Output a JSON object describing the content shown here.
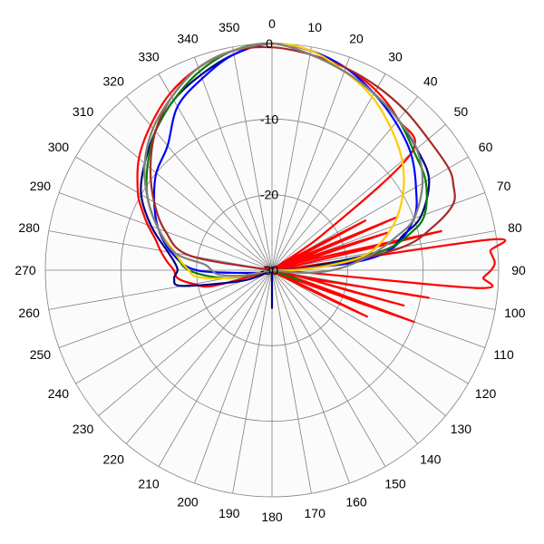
{
  "chart_data": {
    "type": "polar-line",
    "title": "",
    "angle_unit": "degrees",
    "angle_zero": "top",
    "angle_direction": "clockwise",
    "angle_ticks": [
      0,
      10,
      20,
      30,
      40,
      50,
      60,
      70,
      80,
      90,
      100,
      110,
      120,
      130,
      140,
      150,
      160,
      170,
      180,
      190,
      200,
      210,
      220,
      230,
      240,
      250,
      260,
      270,
      280,
      290,
      300,
      310,
      320,
      330,
      340,
      350
    ],
    "radial_range": [
      -30,
      0
    ],
    "radial_ticks": [
      0,
      -10,
      -20,
      -30
    ],
    "radial_tick_labels": [
      "0",
      "-10",
      "-20",
      "-30"
    ],
    "grid": true,
    "legend": "none",
    "colors": {
      "background": "#ffffff",
      "plot_background": "#fbfbfb",
      "grid": "#808080"
    },
    "series": [
      {
        "color": "#ff0000",
        "angles": [
          0,
          10,
          20,
          30,
          40,
          50,
          55,
          60,
          62,
          65,
          67,
          70,
          72,
          75,
          77,
          80,
          82,
          85,
          88,
          90,
          92,
          95,
          97,
          100,
          103,
          105,
          107,
          110,
          113,
          116,
          118,
          120,
          125,
          130,
          140,
          150,
          170,
          180,
          200,
          220,
          240,
          250,
          255,
          260,
          265,
          270,
          275,
          280,
          285,
          290,
          295,
          300,
          310,
          320,
          330,
          340,
          350
        ],
        "values": [
          0,
          -0.5,
          -1.5,
          -2.5,
          -4,
          -6,
          -22,
          -30,
          -16,
          -30,
          -12,
          -30,
          -14,
          -30,
          -7,
          -30,
          -1,
          -1,
          -0.5,
          -1,
          -2,
          -3,
          -30,
          -9,
          -24,
          -12,
          -30,
          -10,
          -30,
          -16,
          -30,
          -30,
          -30,
          -30,
          -30,
          -30,
          -30,
          -30,
          -30,
          -30,
          -30,
          -30,
          -22,
          -19.5,
          -17.5,
          -17,
          -16,
          -15,
          -14,
          -12.5,
          -11,
          -9.5,
          -7,
          -5,
          -3,
          -1.5,
          -0.5
        ]
      },
      {
        "color": "#000080",
        "angles": [
          0,
          10,
          20,
          30,
          40,
          50,
          60,
          70,
          75,
          80,
          85,
          90,
          100,
          110,
          120,
          140,
          160,
          180,
          200,
          220,
          240,
          250,
          260,
          265,
          270,
          275,
          280,
          290,
          300,
          310,
          320,
          330,
          340,
          350
        ],
        "values": [
          0,
          -1,
          -2,
          -3,
          -4,
          -5,
          -6,
          -9,
          -12,
          -15,
          -25,
          -30,
          -30,
          -30,
          -30,
          -30,
          -30,
          -25,
          -30,
          -30,
          -30,
          -26,
          -18,
          -17,
          -17.5,
          -17,
          -16,
          -13,
          -10,
          -8,
          -6,
          -4,
          -2.5,
          -1
        ]
      },
      {
        "color": "#0000ff",
        "angles": [
          0,
          10,
          20,
          30,
          40,
          50,
          60,
          70,
          80,
          85,
          90,
          100,
          120,
          150,
          180,
          210,
          240,
          250,
          260,
          270,
          280,
          290,
          300,
          310,
          320,
          330,
          340,
          350
        ],
        "values": [
          0,
          -0.5,
          -1.5,
          -3,
          -4.5,
          -6,
          -8,
          -10,
          -14,
          -20,
          -30,
          -30,
          -30,
          -30,
          -30,
          -30,
          -30,
          -30,
          -28,
          -20,
          -16.5,
          -14,
          -12,
          -10,
          -8.5,
          -5,
          -3,
          -1
        ]
      },
      {
        "color": "#008000",
        "angles": [
          0,
          10,
          20,
          30,
          40,
          50,
          60,
          70,
          75,
          80,
          85,
          90,
          100,
          110,
          120,
          140,
          160,
          180,
          200,
          220,
          240,
          250,
          260,
          270,
          280,
          290,
          300,
          310,
          320,
          330,
          340,
          350
        ],
        "values": [
          0,
          -1,
          -2,
          -3,
          -4,
          -5.5,
          -6.5,
          -8.5,
          -11,
          -15,
          -23,
          -30,
          -30,
          -26,
          -30,
          -30,
          -30,
          -30,
          -30,
          -30,
          -30,
          -30,
          -24,
          -19,
          -17,
          -14,
          -11,
          -8.5,
          -6,
          -4,
          -2,
          -0.5
        ]
      },
      {
        "color": "#a52a2a",
        "angles": [
          0,
          10,
          20,
          30,
          40,
          50,
          60,
          65,
          70,
          75,
          80,
          85,
          90,
          95,
          100,
          110,
          120,
          140,
          160,
          180,
          200,
          220,
          240,
          260,
          270,
          280,
          290,
          300,
          310,
          320,
          330,
          340,
          350
        ],
        "values": [
          -0.5,
          -1,
          -1.5,
          -2,
          -2.5,
          -3,
          -3,
          -3.5,
          -4.5,
          -8,
          -12.5,
          -22,
          -30,
          -28,
          -30,
          -30,
          -30,
          -30,
          -30,
          -30,
          -30,
          -30,
          -30,
          -30,
          -30,
          -19,
          -15,
          -12,
          -9,
          -6,
          -3.5,
          -1.5,
          -0.5
        ]
      },
      {
        "color": "#ffcc00",
        "angles": [
          0,
          10,
          20,
          30,
          40,
          50,
          60,
          70,
          80,
          85,
          90,
          95,
          100,
          110,
          120,
          150,
          180,
          210,
          240,
          250,
          260,
          265,
          270,
          275,
          280,
          290,
          300,
          310,
          320,
          330,
          340,
          350
        ],
        "values": [
          0,
          -0.5,
          -2,
          -3.5,
          -5.5,
          -7.5,
          -10,
          -13,
          -17,
          -22,
          -27,
          -30,
          -30,
          -30,
          -30,
          -30,
          -30,
          -30,
          -30,
          -30,
          -24,
          -20,
          -19,
          -18,
          -17,
          -14,
          -11,
          -8,
          -5.5,
          -3.5,
          -1.5,
          -0.5
        ]
      },
      {
        "color": "#808080",
        "angles": [
          0,
          10,
          20,
          30,
          40,
          50,
          60,
          70,
          75,
          80,
          85,
          90,
          95,
          100,
          110,
          120,
          140,
          160,
          180,
          200,
          220,
          240,
          250,
          260,
          265,
          270,
          275,
          280,
          290,
          300,
          310,
          320,
          330,
          340,
          350
        ],
        "values": [
          0,
          -1,
          -2,
          -3,
          -4,
          -5,
          -7,
          -10,
          -13,
          -16,
          -19,
          -22,
          -26,
          -30,
          -30,
          -30,
          -30,
          -30,
          -30,
          -30,
          -30,
          -30,
          -30,
          -26,
          -23,
          -22,
          -21,
          -17,
          -14,
          -11,
          -8,
          -5.5,
          -3.5,
          -1.5,
          -0.5
        ]
      }
    ]
  }
}
